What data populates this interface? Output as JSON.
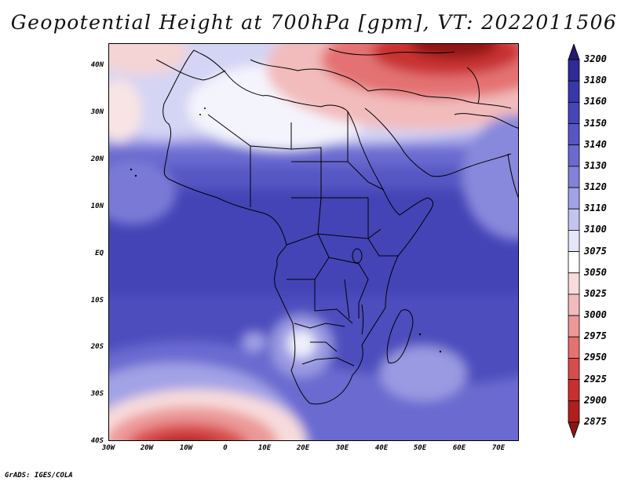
{
  "title": "Geopotential Height at 700hPa [gpm], VT: 2022011506",
  "footer": "GrADS: IGES/COLA",
  "axes": {
    "y_ticks": [
      "40N",
      "30N",
      "20N",
      "10N",
      "EQ",
      "10S",
      "20S",
      "30S",
      "40S"
    ],
    "x_ticks": [
      "30W",
      "20W",
      "10W",
      "0",
      "10E",
      "20E",
      "30E",
      "40E",
      "50E",
      "60E",
      "70E"
    ]
  },
  "colorbar": {
    "levels": [
      "3200",
      "3180",
      "3160",
      "3150",
      "3140",
      "3130",
      "3120",
      "3110",
      "3100",
      "3075",
      "3050",
      "3025",
      "3000",
      "2975",
      "2950",
      "2925",
      "2900",
      "2875"
    ],
    "colors": [
      "#241a78",
      "#2e2a96",
      "#3838aa",
      "#4646b8",
      "#5656c4",
      "#6a6ad0",
      "#8282da",
      "#a2a2e6",
      "#c4c4f0",
      "#e6e6fa",
      "#ffffff",
      "#f8dcdc",
      "#f2bcbc",
      "#ec9898",
      "#e47272",
      "#d84c4c",
      "#c83030",
      "#b01e1e",
      "#8e1414"
    ]
  },
  "accent_colors": {
    "land_outline": "#000000",
    "frame": "#000000"
  }
}
